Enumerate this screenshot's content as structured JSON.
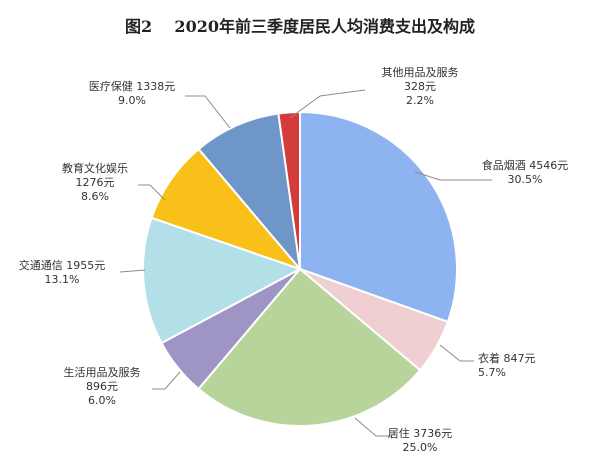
{
  "chart_data": {
    "type": "pie",
    "title": "图2    2020年前三季度居民人均消费支出及构成",
    "start": "top",
    "direction": "clockwise",
    "slices": [
      {
        "name": "食品烟酒",
        "value": 4546,
        "value_label": "4546元",
        "percent_label": "30.5%",
        "color": "#8db3f0"
      },
      {
        "name": "衣着",
        "value": 847,
        "value_label": "847元",
        "percent_label": "5.7%",
        "color": "#efcfd1"
      },
      {
        "name": "居住",
        "value": 3736,
        "value_label": "3736元",
        "percent_label": "25.0%",
        "color": "#b7d49a"
      },
      {
        "name": "生活用品及服务",
        "value": 896,
        "value_label": "896元",
        "percent_label": "6.0%",
        "color": "#9f95c5"
      },
      {
        "name": "交通通信",
        "value": 1955,
        "value_label": "1955元",
        "percent_label": "13.1%",
        "color": "#b3e0e8"
      },
      {
        "name": "教育文化娱乐",
        "value": 1276,
        "value_label": "1276元",
        "percent_label": "8.6%",
        "color": "#f8c019"
      },
      {
        "name": "医疗保健",
        "value": 1338,
        "value_label": "1338元",
        "percent_label": "9.0%",
        "color": "#6f96c8"
      },
      {
        "name": "其他用品及服务",
        "value": 328,
        "value_label": "328元",
        "percent_label": "2.2%",
        "color": "#d43b3b"
      }
    ]
  }
}
